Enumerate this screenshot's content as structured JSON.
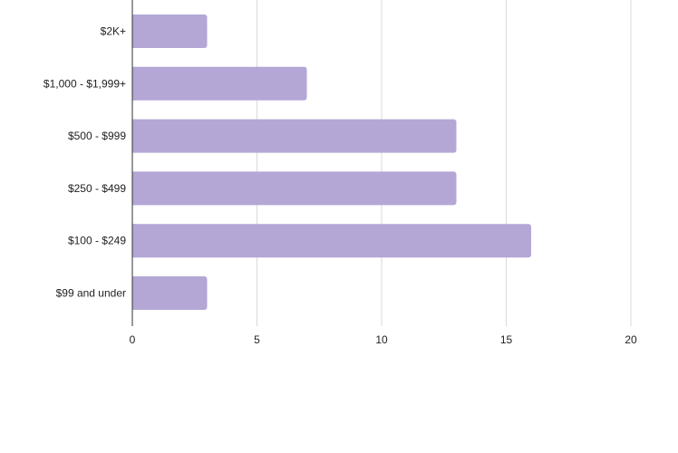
{
  "chart_data": {
    "type": "bar",
    "orientation": "horizontal",
    "categories": [
      "$2K+",
      "$1,000 - $1,999+",
      "$500 - $999",
      "$250 - $499",
      "$100 - $249",
      "$99 and under"
    ],
    "values": [
      3,
      7,
      13,
      13,
      16,
      3
    ],
    "xlim": [
      0,
      20
    ],
    "xticks": [
      "0",
      "5",
      "10",
      "15",
      "20"
    ],
    "grid": true,
    "bar_color": "#b4a7d6",
    "title": "",
    "xlabel": "",
    "ylabel": ""
  }
}
